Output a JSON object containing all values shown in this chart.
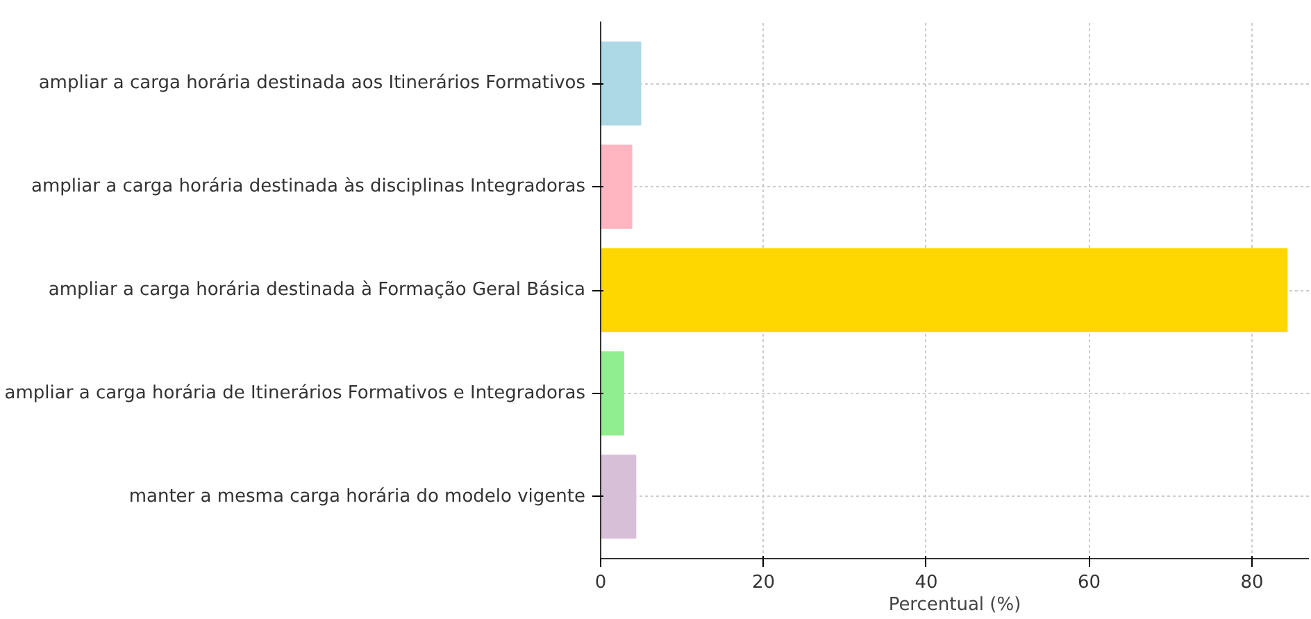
{
  "chart_data": {
    "type": "bar",
    "orientation": "horizontal",
    "categories": [
      "ampliar a carga horária destinada aos Itinerários Formativos",
      "ampliar a carga horária destinada às disciplinas Integradoras",
      "ampliar a carga horária destinada à Formação Geral Básica",
      "ampliar a carga horária de Itinerários Formativos e Integradoras",
      "manter a mesma carga horária do modelo vigente"
    ],
    "values": [
      4.9,
      3.8,
      84.3,
      2.8,
      4.3
    ],
    "colors": [
      "#add8e6",
      "#ffb6c1",
      "#ffd700",
      "#90ee90",
      "#d8bfd8"
    ],
    "xlabel": "Percentual (%)",
    "xlim": [
      0,
      87
    ],
    "xticks": [
      0,
      20,
      40,
      60,
      80
    ],
    "grid": true
  }
}
